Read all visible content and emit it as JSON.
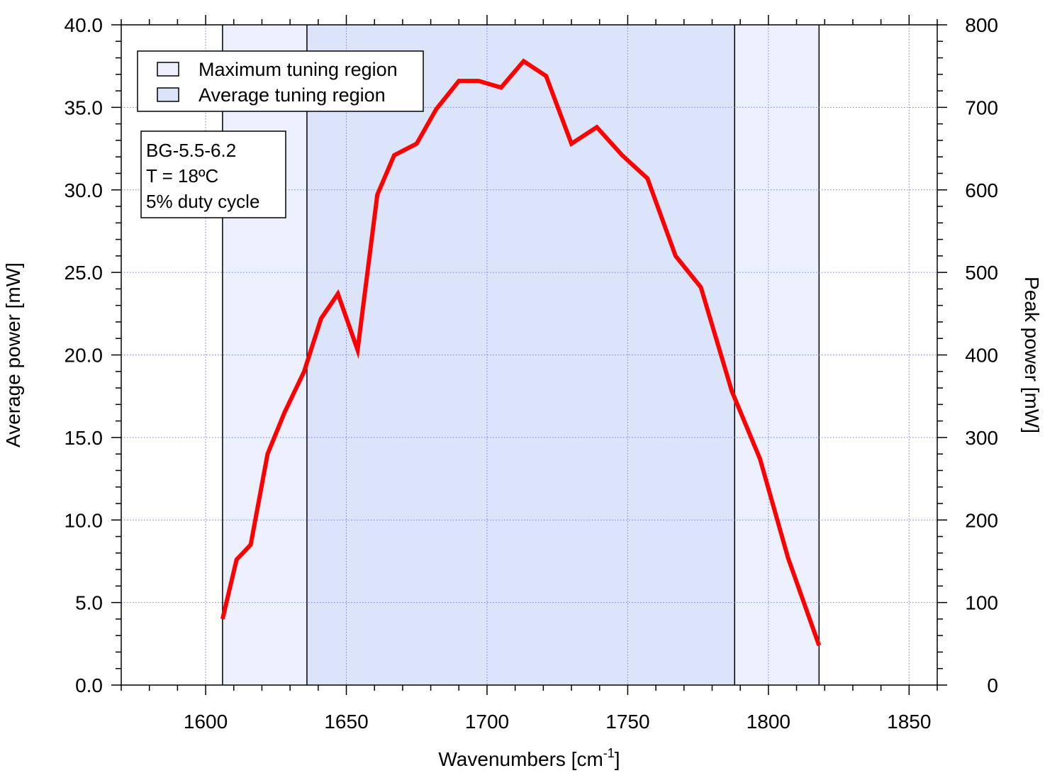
{
  "chart_data": {
    "type": "line",
    "xlabel": "Wavenumbers [cm",
    "xlabel_superscript": "-1",
    "xlabel_suffix": "]",
    "ylabel": "Average power [mW]",
    "y2label": "Peak power [mW]",
    "xlim": [
      1570,
      1860
    ],
    "ylim": [
      0,
      40
    ],
    "y2lim": [
      0,
      800
    ],
    "grid": true,
    "x_ticks": [
      "1600",
      "1650",
      "1700",
      "1750",
      "1800",
      "1850"
    ],
    "x_tick_values": [
      1600,
      1650,
      1700,
      1750,
      1800,
      1850
    ],
    "y_ticks": [
      "0.0",
      "5.0",
      "10.0",
      "15.0",
      "20.0",
      "25.0",
      "30.0",
      "35.0",
      "40.0"
    ],
    "y_tick_values": [
      0,
      5,
      10,
      15,
      20,
      25,
      30,
      35,
      40
    ],
    "y2_ticks": [
      "0",
      "100",
      "200",
      "300",
      "400",
      "500",
      "600",
      "700",
      "800"
    ],
    "y2_tick_values": [
      0,
      100,
      200,
      300,
      400,
      500,
      600,
      700,
      800
    ],
    "regions": [
      {
        "name": "Maximum tuning region",
        "x_start": 1606,
        "x_end": 1818,
        "color": "#ecf0fc"
      },
      {
        "name": "Average tuning region",
        "x_start": 1636,
        "x_end": 1788,
        "color": "#dce4fa"
      }
    ],
    "legend": {
      "position": "top-left",
      "entries": [
        "Maximum tuning region",
        "Average tuning region"
      ]
    },
    "annotation": {
      "lines": [
        "BG-5.5-6.2",
        "T = 18ºC",
        "5% duty cycle"
      ]
    },
    "series": [
      {
        "color": "#ff0000",
        "x": [
          1606,
          1611,
          1616,
          1622,
          1628,
          1635,
          1641,
          1647,
          1654,
          1661,
          1667,
          1675,
          1682,
          1690,
          1697,
          1705,
          1713,
          1721,
          1730,
          1739,
          1748,
          1757,
          1767,
          1776,
          1787,
          1797,
          1807,
          1818
        ],
        "y": [
          4.0,
          7.6,
          8.5,
          14.0,
          16.5,
          19.0,
          22.2,
          23.7,
          20.3,
          29.7,
          32.1,
          32.8,
          34.9,
          36.6,
          36.6,
          36.2,
          37.8,
          36.9,
          32.8,
          33.8,
          32.1,
          30.7,
          26.0,
          24.1,
          17.8,
          13.7,
          7.7,
          2.4
        ]
      }
    ]
  }
}
